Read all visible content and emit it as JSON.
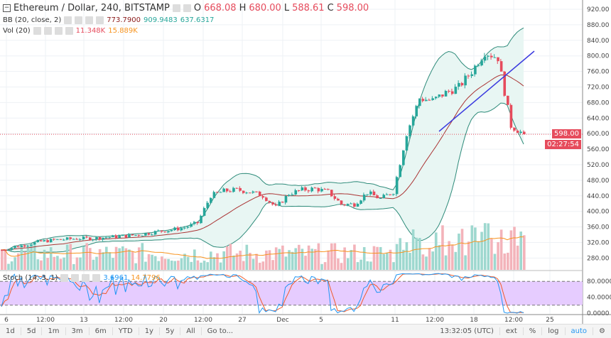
{
  "header": {
    "title": "Ethereum / Dollar, 240, BITSTAMP",
    "open_label": "O",
    "open": "668.08",
    "high_label": "H",
    "high": "680.00",
    "low_label": "L",
    "low": "588.61",
    "close_label": "C",
    "close": "598.00"
  },
  "bb": {
    "label": "BB (20, close, 2)",
    "basis": "773.7900",
    "upper": "909.9483",
    "lower": "637.6317"
  },
  "vol": {
    "label": "Vol (20)",
    "value": "11.348K",
    "ma": "15.889K"
  },
  "stoch": {
    "label": "Stoch (14, 3, 1)",
    "k": "3.6961",
    "d": "14.7796",
    "axis": [
      "80.0000",
      "40.0000",
      "0.0000"
    ]
  },
  "price_axis": [
    "920.00",
    "880.00",
    "840.00",
    "800.00",
    "760.00",
    "720.00",
    "680.00",
    "640.00",
    "600.00",
    "560.00",
    "520.00",
    "480.00",
    "440.00",
    "400.00",
    "360.00",
    "320.00",
    "280.00"
  ],
  "last_price": "598.00",
  "countdown": "02:27:54",
  "time_axis": [
    "6",
    "12:00",
    "13",
    "12:00",
    "20",
    "12:00",
    "27",
    "Dec",
    "5",
    "11",
    "12:00",
    "18",
    "12:00",
    "25"
  ],
  "bottom": {
    "ranges": [
      "1d",
      "5d",
      "1m",
      "3m",
      "6m",
      "YTD",
      "1y",
      "5y",
      "All"
    ],
    "goto": "Go to...",
    "clock": "13:32:05 (UTC)",
    "ext": "ext",
    "pct": "%",
    "log": "log",
    "auto": "auto"
  },
  "colors": {
    "up": "#26a69a",
    "down": "#e64b5c",
    "bb_fill": "#e8f6f3",
    "stoch_fill": "#e6ccff",
    "trendline": "#3a3adf"
  },
  "chart_data": {
    "type": "candlestick",
    "closes": [
      300,
      308,
      315,
      322,
      326,
      328,
      330,
      330,
      333,
      335,
      338,
      342,
      348,
      352,
      358,
      370,
      440,
      452,
      455,
      450,
      440,
      410,
      445,
      455,
      458,
      450,
      418,
      418,
      448,
      432,
      450,
      600,
      690,
      685,
      705,
      720,
      760,
      810,
      795,
      620,
      598
    ]
  }
}
